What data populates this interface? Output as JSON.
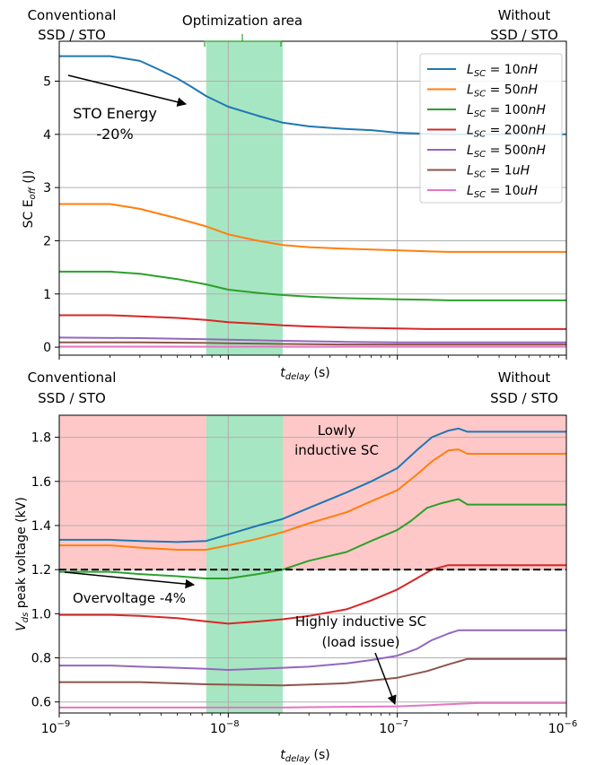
{
  "colors": {
    "c10nH": "#1f77b4",
    "c50nH": "#ff7f0e",
    "c100nH": "#2ca02c",
    "c200nH": "#d62728",
    "c500nH": "#9467bd",
    "c1uH": "#8c564b",
    "c10uH": "#e377c2",
    "opt_area": "#5ed18f",
    "overvoltage_zone": "#ff9a9a",
    "threshold_line": "#000000"
  },
  "top": {
    "label_left_line1": "Conventional",
    "label_left_line2": "SSD / STO",
    "label_right_line1": "Without",
    "label_right_line2": "SSD / STO",
    "label_opt_area": "Optimization area",
    "annotation_line1": "STO Energy",
    "annotation_line2": "-20%",
    "ylabel_main": "SC E",
    "ylabel_sub": "off",
    "ylabel_unit": " (J)",
    "xlabel_main": "t",
    "xlabel_sub": "delay",
    "xlabel_unit": " (s)"
  },
  "bottom": {
    "label_left_line1": "Conventional",
    "label_left_line2": "SSD / STO",
    "label_right_line1": "Without",
    "label_right_line2": "SSD / STO",
    "annotation_lowly_line1": "Lowly",
    "annotation_lowly_line2": "inductive SC",
    "annotation_overvoltage": "Overvoltage -4%",
    "annotation_highly_line1": "Highly inductive SC",
    "annotation_highly_line2": "(load issue)",
    "ylabel_main": "V",
    "ylabel_sub": "ds",
    "ylabel_unit": " peak voltage (kV)",
    "xlabel_main": "t",
    "xlabel_sub": "delay",
    "xlabel_unit": " (s)",
    "x_tick_labels": [
      "10",
      "10",
      "10",
      "10"
    ],
    "x_tick_exponents": [
      "−9",
      "−8",
      "−7",
      "−6"
    ]
  },
  "legend": [
    {
      "name": "L_SC = 10nH",
      "prefix": "L",
      "sub": "SC",
      "suffix": " = 10",
      "unit": "nH",
      "color": "#1f77b4"
    },
    {
      "name": "L_SC = 50nH",
      "prefix": "L",
      "sub": "SC",
      "suffix": " = 50",
      "unit": "nH",
      "color": "#ff7f0e"
    },
    {
      "name": "L_SC = 100nH",
      "prefix": "L",
      "sub": "SC",
      "suffix": " = 100",
      "unit": "nH",
      "color": "#2ca02c"
    },
    {
      "name": "L_SC = 200nH",
      "prefix": "L",
      "sub": "SC",
      "suffix": " = 200",
      "unit": "nH",
      "color": "#d62728"
    },
    {
      "name": "L_SC = 500nH",
      "prefix": "L",
      "sub": "SC",
      "suffix": " = 500",
      "unit": "nH",
      "color": "#9467bd"
    },
    {
      "name": "L_SC = 1uH",
      "prefix": "L",
      "sub": "SC",
      "suffix": " = 1",
      "unit": "uH",
      "color": "#8c564b"
    },
    {
      "name": "L_SC = 10uH",
      "prefix": "L",
      "sub": "SC",
      "suffix": " = 10",
      "unit": "uH",
      "color": "#e377c2"
    }
  ],
  "chart_data": [
    {
      "type": "line",
      "xscale": "log",
      "xlim": [
        1e-09,
        1e-06
      ],
      "ylim": [
        -0.15,
        5.75
      ],
      "yticks": [
        0,
        1,
        2,
        3,
        4,
        5
      ],
      "grid": true,
      "legend_position": "top-right",
      "shaded_regions": [
        {
          "x": [
            7.4e-09,
            2.1e-08
          ],
          "color": "#5ed18f",
          "label": "Optimization area"
        }
      ],
      "series": [
        {
          "name": "L_SC = 10nH",
          "x": [
            1e-09,
            2e-09,
            3e-09,
            4e-09,
            5e-09,
            6e-09,
            7.4e-09,
            1e-08,
            1.5e-08,
            2.1e-08,
            3e-08,
            5e-08,
            7e-08,
            1e-07,
            1.5e-07,
            2e-07,
            3e-07,
            1e-06
          ],
          "y": [
            5.47,
            5.47,
            5.38,
            5.2,
            5.05,
            4.9,
            4.72,
            4.52,
            4.35,
            4.22,
            4.15,
            4.1,
            4.08,
            4.03,
            4.01,
            4.0,
            4.0,
            4.0
          ]
        },
        {
          "name": "L_SC = 50nH",
          "x": [
            1e-09,
            2e-09,
            3e-09,
            5e-09,
            7.4e-09,
            1e-08,
            1.5e-08,
            2.1e-08,
            3e-08,
            5e-08,
            1e-07,
            1.5e-07,
            2e-07,
            3e-07,
            1e-06
          ],
          "y": [
            2.69,
            2.69,
            2.6,
            2.42,
            2.27,
            2.12,
            2.0,
            1.92,
            1.88,
            1.85,
            1.82,
            1.8,
            1.79,
            1.79,
            1.79
          ]
        },
        {
          "name": "L_SC = 100nH",
          "x": [
            1e-09,
            2e-09,
            3e-09,
            5e-09,
            7.4e-09,
            1e-08,
            1.5e-08,
            2.1e-08,
            3e-08,
            5e-08,
            1e-07,
            1.5e-07,
            2e-07,
            3e-07,
            1e-06
          ],
          "y": [
            1.42,
            1.42,
            1.38,
            1.28,
            1.18,
            1.08,
            1.02,
            0.98,
            0.95,
            0.92,
            0.9,
            0.89,
            0.88,
            0.88,
            0.88
          ]
        },
        {
          "name": "L_SC = 200nH",
          "x": [
            1e-09,
            2e-09,
            3e-09,
            5e-09,
            7.4e-09,
            1e-08,
            1.5e-08,
            2.1e-08,
            3e-08,
            5e-08,
            1e-07,
            1.5e-07,
            2e-07,
            3e-07,
            1e-06
          ],
          "y": [
            0.6,
            0.6,
            0.58,
            0.55,
            0.51,
            0.47,
            0.44,
            0.41,
            0.39,
            0.37,
            0.35,
            0.34,
            0.34,
            0.34,
            0.34
          ]
        },
        {
          "name": "L_SC = 500nH",
          "x": [
            1e-09,
            3e-09,
            7.4e-09,
            2.1e-08,
            5e-08,
            1e-07,
            2e-07,
            1e-06
          ],
          "y": [
            0.18,
            0.17,
            0.15,
            0.12,
            0.1,
            0.09,
            0.09,
            0.09
          ]
        },
        {
          "name": "L_SC = 1uH",
          "x": [
            1e-09,
            3e-09,
            7.4e-09,
            2.1e-08,
            5e-08,
            1e-07,
            2e-07,
            1e-06
          ],
          "y": [
            0.09,
            0.09,
            0.08,
            0.06,
            0.05,
            0.05,
            0.05,
            0.05
          ]
        },
        {
          "name": "L_SC = 10uH",
          "x": [
            1e-09,
            3e-09,
            7.4e-09,
            2.1e-08,
            5e-08,
            1e-07,
            2e-07,
            1e-06
          ],
          "y": [
            0.01,
            0.01,
            0.01,
            0.01,
            0.01,
            0.01,
            0.01,
            0.01
          ]
        }
      ]
    },
    {
      "type": "line",
      "xscale": "log",
      "xlim": [
        1e-09,
        1e-06
      ],
      "ylim": [
        0.55,
        1.9
      ],
      "yticks": [
        0.6,
        0.8,
        1.0,
        1.2,
        1.4,
        1.6,
        1.8
      ],
      "grid": true,
      "threshold": {
        "y": 1.2,
        "style": "dashed"
      },
      "shaded_regions": [
        {
          "x": [
            7.4e-09,
            2.1e-08
          ],
          "color": "#5ed18f",
          "label": "Optimization area"
        },
        {
          "x": [
            1e-09,
            7.4e-09
          ],
          "y": [
            1.2,
            1.9
          ],
          "color": "#ff9a9a"
        },
        {
          "x": [
            2.1e-08,
            1e-06
          ],
          "y": [
            1.2,
            1.9
          ],
          "color": "#ff9a9a"
        }
      ],
      "series": [
        {
          "name": "L_SC = 10nH",
          "x": [
            1e-09,
            2e-09,
            3e-09,
            5e-09,
            7.4e-09,
            1e-08,
            1.5e-08,
            2.1e-08,
            3e-08,
            5e-08,
            7e-08,
            1e-07,
            1.3e-07,
            1.6e-07,
            2e-07,
            2.3e-07,
            2.6e-07,
            1e-06
          ],
          "y": [
            1.335,
            1.335,
            1.33,
            1.325,
            1.33,
            1.36,
            1.4,
            1.43,
            1.48,
            1.55,
            1.6,
            1.66,
            1.74,
            1.8,
            1.83,
            1.84,
            1.825,
            1.825
          ]
        },
        {
          "name": "L_SC = 50nH",
          "x": [
            1e-09,
            2e-09,
            3e-09,
            5e-09,
            7.4e-09,
            1e-08,
            1.5e-08,
            2.1e-08,
            3e-08,
            5e-08,
            7e-08,
            1e-07,
            1.3e-07,
            1.6e-07,
            2e-07,
            2.3e-07,
            2.6e-07,
            1e-06
          ],
          "y": [
            1.31,
            1.31,
            1.3,
            1.29,
            1.29,
            1.31,
            1.34,
            1.37,
            1.41,
            1.46,
            1.51,
            1.56,
            1.63,
            1.69,
            1.74,
            1.745,
            1.725,
            1.725
          ]
        },
        {
          "name": "L_SC = 100nH",
          "x": [
            1e-09,
            2e-09,
            3e-09,
            5e-09,
            7.4e-09,
            1e-08,
            1.5e-08,
            2.1e-08,
            3e-08,
            5e-08,
            7e-08,
            1e-07,
            1.2e-07,
            1.5e-07,
            1.8e-07,
            2.3e-07,
            2.6e-07,
            1e-06
          ],
          "y": [
            1.19,
            1.19,
            1.18,
            1.17,
            1.16,
            1.16,
            1.18,
            1.2,
            1.24,
            1.28,
            1.33,
            1.38,
            1.42,
            1.48,
            1.5,
            1.52,
            1.495,
            1.495
          ]
        },
        {
          "name": "L_SC = 200nH",
          "x": [
            1e-09,
            2e-09,
            3e-09,
            5e-09,
            7.4e-09,
            1e-08,
            1.5e-08,
            2.1e-08,
            3e-08,
            5e-08,
            7e-08,
            1e-07,
            1.3e-07,
            1.6e-07,
            2e-07,
            1e-06
          ],
          "y": [
            0.995,
            0.995,
            0.99,
            0.98,
            0.965,
            0.955,
            0.965,
            0.975,
            0.99,
            1.02,
            1.06,
            1.11,
            1.16,
            1.2,
            1.22,
            1.22
          ]
        },
        {
          "name": "L_SC = 500nH",
          "x": [
            1e-09,
            2e-09,
            3e-09,
            5e-09,
            7.4e-09,
            1e-08,
            1.5e-08,
            2.1e-08,
            3e-08,
            5e-08,
            7e-08,
            1e-07,
            1.3e-07,
            1.6e-07,
            2e-07,
            2.3e-07,
            1e-06
          ],
          "y": [
            0.765,
            0.765,
            0.76,
            0.755,
            0.75,
            0.745,
            0.75,
            0.755,
            0.76,
            0.775,
            0.79,
            0.81,
            0.84,
            0.88,
            0.91,
            0.925,
            0.925
          ]
        },
        {
          "name": "L_SC = 1uH",
          "x": [
            1e-09,
            3e-09,
            7.4e-09,
            2.1e-08,
            5e-08,
            1e-07,
            1.5e-07,
            2e-07,
            2.6e-07,
            1e-06
          ],
          "y": [
            0.69,
            0.69,
            0.68,
            0.675,
            0.685,
            0.71,
            0.74,
            0.77,
            0.795,
            0.795
          ]
        },
        {
          "name": "L_SC = 10uH",
          "x": [
            1e-09,
            3e-09,
            7.4e-09,
            2.1e-08,
            5e-08,
            1e-07,
            1.5e-07,
            2e-07,
            3e-07,
            1e-06
          ],
          "y": [
            0.575,
            0.575,
            0.575,
            0.575,
            0.578,
            0.58,
            0.585,
            0.59,
            0.595,
            0.595
          ]
        }
      ]
    }
  ]
}
